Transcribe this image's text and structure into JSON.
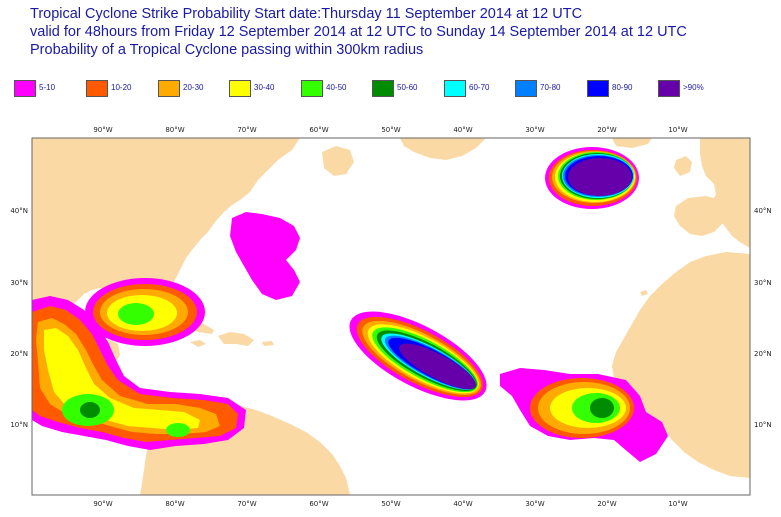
{
  "title": {
    "line1": "Tropical Cyclone Strike Probability Start date:Thursday 11 September 2014 at 12 UTC",
    "line2": "valid for 48hours from Friday 12 September 2014 at 12 UTC to  Sunday 14 September 2014 at 12 UTC",
    "line3": "Probability of a Tropical Cyclone passing within 300km radius"
  },
  "legend": [
    {
      "label": "5-10",
      "color": "#ff00ff"
    },
    {
      "label": "10-20",
      "color": "#ff5a00"
    },
    {
      "label": "20-30",
      "color": "#ffaa00"
    },
    {
      "label": "30-40",
      "color": "#ffff00"
    },
    {
      "label": "40-50",
      "color": "#33ff00"
    },
    {
      "label": "50-60",
      "color": "#008c00"
    },
    {
      "label": "60-70",
      "color": "#00ffff"
    },
    {
      "label": "70-80",
      "color": "#0080ff"
    },
    {
      "label": "80-90",
      "color": "#0000ff"
    },
    {
      "label": ">90%",
      "color": "#6600aa"
    }
  ],
  "map": {
    "lon_range": [
      -100,
      0
    ],
    "lat_range": [
      0,
      50
    ],
    "land_color": "#fad9a5",
    "sea_color": "#ffffff",
    "lon_ticks": [
      "90°W",
      "80°W",
      "70°W",
      "60°W",
      "50°W",
      "40°W",
      "30°W",
      "20°W",
      "10°W"
    ],
    "lat_ticks": [
      "10°N",
      "20°N",
      "30°N",
      "40°N"
    ]
  }
}
